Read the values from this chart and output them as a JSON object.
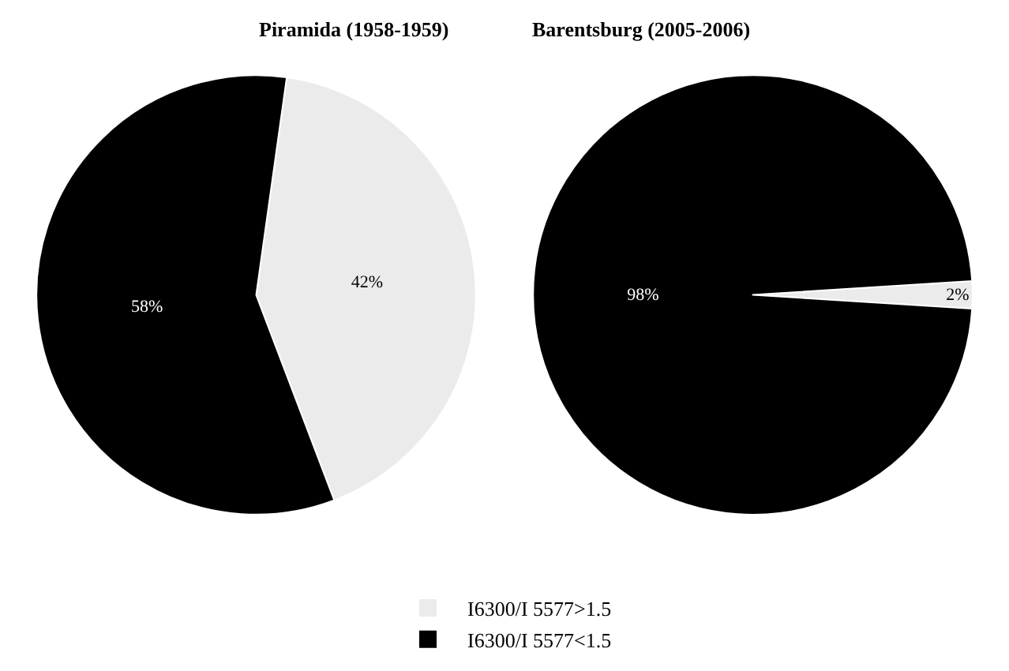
{
  "chart_data": [
    {
      "type": "pie",
      "title": "Piramida (1958-1959)",
      "categories": [
        "I6300/I 5577>1.5",
        "I6300/I 5577<1.5"
      ],
      "values": [
        42,
        58
      ],
      "colors": [
        "#ebebeb",
        "#000000"
      ],
      "value_labels": [
        "42%",
        "58%"
      ],
      "legend": "bottom"
    },
    {
      "type": "pie",
      "title": "Barentsburg (2005-2006)",
      "categories": [
        null,
        null
      ],
      "values": [
        2,
        98
      ],
      "colors": [
        "#ebebeb",
        "#000000"
      ],
      "value_labels": [
        "2%",
        "98%"
      ]
    }
  ]
}
